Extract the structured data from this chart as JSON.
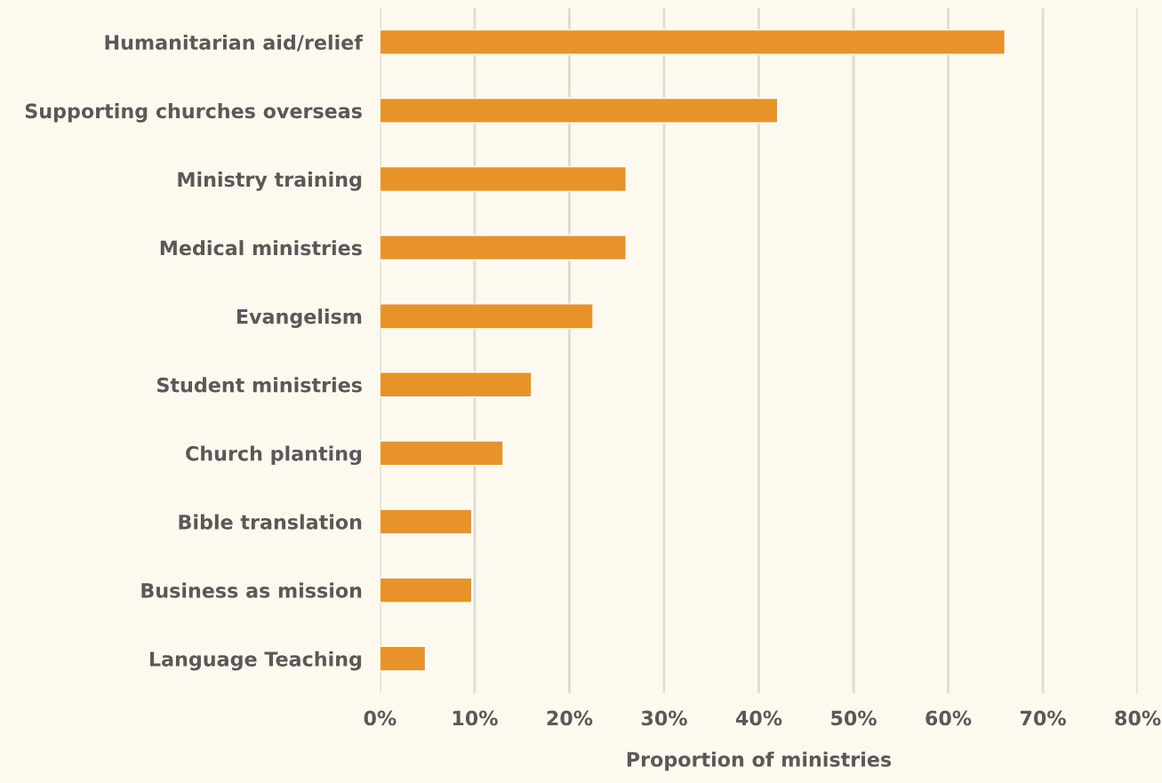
{
  "chart_data": {
    "type": "bar",
    "orientation": "horizontal",
    "xlabel": "Proportion of ministries",
    "categories": [
      "Humanitarian aid/relief",
      "Supporting churches overseas",
      "Ministry training",
      "Medical ministries",
      "Evangelism",
      "Student ministries",
      "Church planting",
      "Bible translation",
      "Business as mission",
      "Language Teaching"
    ],
    "values": [
      66,
      42,
      26,
      26,
      22.5,
      16,
      13,
      9.7,
      9.7,
      4.8
    ],
    "color": "#e8932a",
    "xlim": [
      0,
      80
    ],
    "xticks": [
      {
        "value": 0,
        "label": "0%"
      },
      {
        "value": 10,
        "label": "10%"
      },
      {
        "value": 20,
        "label": "20%"
      },
      {
        "value": 30,
        "label": "30%"
      },
      {
        "value": 40,
        "label": "40%"
      },
      {
        "value": 50,
        "label": "50%"
      },
      {
        "value": 60,
        "label": "60%"
      },
      {
        "value": 70,
        "label": "70%"
      },
      {
        "value": 80,
        "label": "80%"
      }
    ],
    "grid": "x"
  }
}
